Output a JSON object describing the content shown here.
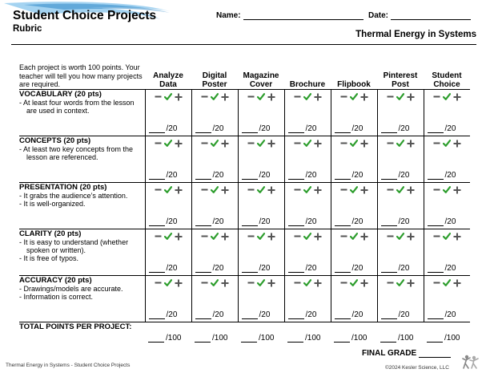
{
  "header": {
    "title": "Student Choice Projects",
    "subtitle": "Rubric",
    "name_label": "Name:",
    "date_label": "Date:",
    "topic": "Thermal Energy in Systems",
    "accent_color": "#2b8fd1"
  },
  "intro": "Each project is worth 100 points. Your teacher will tell you how many projects are required.",
  "columns": [
    {
      "line1": "Analyze",
      "line2": "Data"
    },
    {
      "line1": "Digital",
      "line2": "Poster"
    },
    {
      "line1": "Magazine",
      "line2": "Cover"
    },
    {
      "line1": "",
      "line2": "Brochure"
    },
    {
      "line1": "",
      "line2": "Flipbook"
    },
    {
      "line1": "Pinterest",
      "line2": "Post"
    },
    {
      "line1": "Student",
      "line2": "Choice"
    }
  ],
  "criteria": [
    {
      "title": "VOCABULARY (20 pts)",
      "bullets": [
        "- At least four words from the lesson are used in context."
      ]
    },
    {
      "title": "CONCEPTS (20 pts)",
      "bullets": [
        "- At least two key concepts from the lesson are referenced."
      ]
    },
    {
      "title": "PRESENTATION (20 pts)",
      "bullets": [
        "- It grabs the audience’s attention.",
        "- It is well-organized."
      ]
    },
    {
      "title": "CLARITY (20 pts)",
      "bullets": [
        "- It is easy to understand (whether spoken or written).",
        "- It is free of typos."
      ]
    },
    {
      "title": "ACCURACY (20 pts)",
      "bullets": [
        "- Drawings/models are accurate.",
        "- Information is correct."
      ]
    }
  ],
  "score_suffix": "/20",
  "total_label": "TOTAL POINTS PER PROJECT:",
  "total_suffix": "/100",
  "final_grade_label": "FINAL GRADE",
  "icons": {
    "minus": "minus-icon",
    "check": "check-icon",
    "plus": "plus-icon",
    "check_color": "#2e9e2e",
    "symbol_color": "#555555"
  },
  "footer": {
    "left": "Thermal Energy in Systems - Student Choice Projects",
    "right": "©2024 Kesler Science, LLC"
  }
}
